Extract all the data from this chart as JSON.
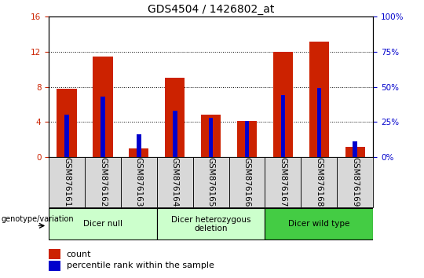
{
  "title": "GDS4504 / 1426802_at",
  "samples": [
    "GSM876161",
    "GSM876162",
    "GSM876163",
    "GSM876164",
    "GSM876165",
    "GSM876166",
    "GSM876167",
    "GSM876168",
    "GSM876169"
  ],
  "count_values": [
    7.8,
    11.5,
    1.0,
    9.0,
    4.8,
    4.1,
    12.0,
    13.2,
    1.2
  ],
  "percentile_values": [
    30.0,
    43.0,
    16.0,
    33.0,
    28.0,
    26.0,
    44.0,
    49.0,
    11.0
  ],
  "left_ylim": [
    0,
    16
  ],
  "left_yticks": [
    0,
    4,
    8,
    12,
    16
  ],
  "right_ylim": [
    0,
    100
  ],
  "right_yticks": [
    0,
    25,
    50,
    75,
    100
  ],
  "count_color": "#cc2200",
  "percentile_color": "#0000cc",
  "bar_width": 0.55,
  "group_labels": [
    "Dicer null",
    "Dicer heterozygous\ndeletion",
    "Dicer wild type"
  ],
  "group_starts": [
    0,
    3,
    6
  ],
  "group_ends": [
    3,
    6,
    9
  ],
  "group_colors": [
    "#ccffcc",
    "#ccffcc",
    "#44cc44"
  ],
  "grid_linestyle": "dotted",
  "legend_count_label": "count",
  "legend_percentile_label": "percentile rank within the sample",
  "genotype_label": "genotype/variation",
  "title_fontsize": 10,
  "tick_fontsize": 7.5,
  "label_fontsize": 8,
  "sample_cell_color": "#d8d8d8"
}
